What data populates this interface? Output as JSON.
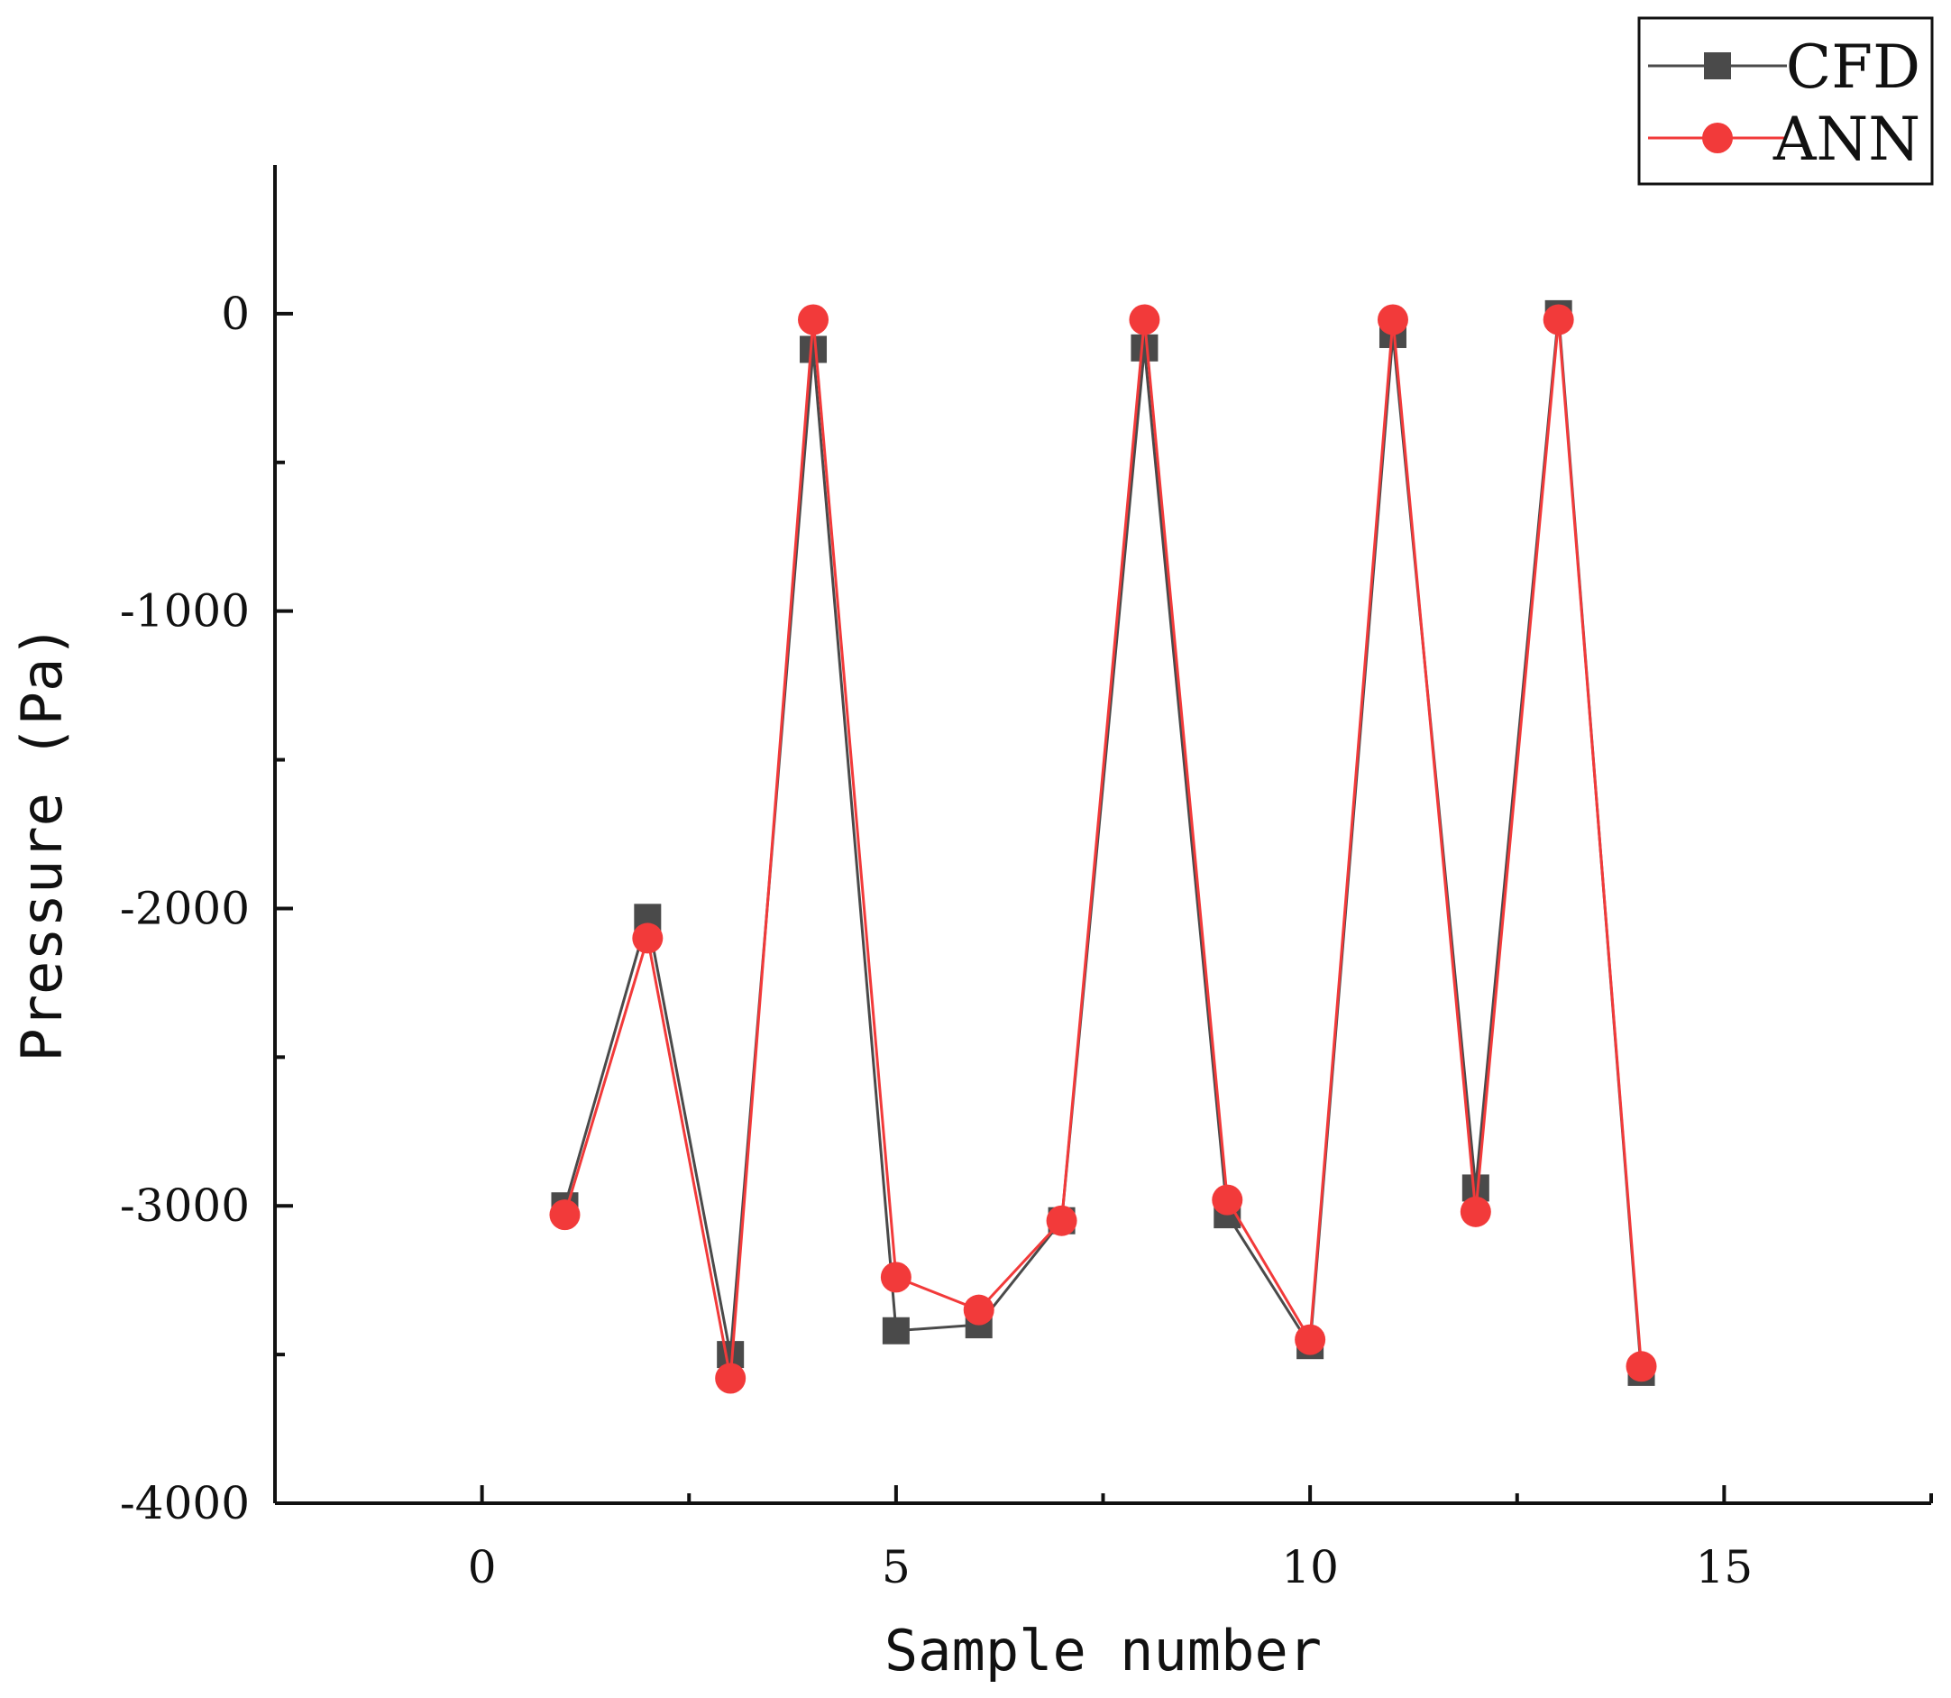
{
  "chart_data": {
    "type": "line",
    "title": "",
    "xlabel": "Sample number",
    "ylabel": "Pressure (Pa)",
    "xlim": [
      -2.5,
      17.5
    ],
    "ylim": [
      -4000,
      500
    ],
    "x_ticks": [
      0,
      5,
      10,
      15
    ],
    "y_ticks": [
      0,
      -1000,
      -2000,
      -3000,
      -4000
    ],
    "x_tick_labels": [
      "0",
      "5",
      "10",
      "15"
    ],
    "y_tick_labels": [
      "0",
      "-1000",
      "-2000",
      "-3000",
      "-4000"
    ],
    "x_minor_ticks": [
      -2.5,
      2.5,
      7.5,
      12.5,
      17.5
    ],
    "y_minor_ticks": [
      -500,
      -1500,
      -2500,
      -3500
    ],
    "grid": false,
    "legend_position": "top-right",
    "x": [
      1,
      2,
      3,
      4,
      5,
      6,
      7,
      8,
      9,
      10,
      11,
      12,
      13,
      14
    ],
    "series": [
      {
        "name": "CFD",
        "color": "#4a4a4a",
        "marker": "square",
        "values": [
          -3000,
          -2030,
          -3500,
          -120,
          -3420,
          -3400,
          -3050,
          -115,
          -3030,
          -3470,
          -70,
          -2940,
          0,
          -3560
        ]
      },
      {
        "name": "ANN",
        "color": "#f23a3a",
        "marker": "circle",
        "values": [
          -3030,
          -2100,
          -3580,
          -20,
          -3240,
          -3350,
          -3050,
          -20,
          -2980,
          -3450,
          -20,
          -3020,
          -20,
          -3540
        ]
      }
    ]
  }
}
